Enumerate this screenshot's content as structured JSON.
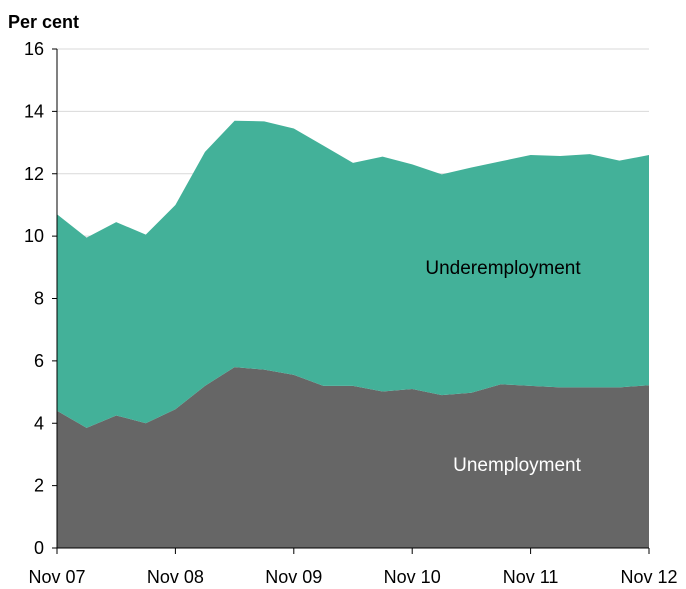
{
  "chart_data": {
    "type": "area",
    "stacked": true,
    "unit_label": "Per cent",
    "x": [
      "Nov 07",
      "Feb 08",
      "May 08",
      "Aug 08",
      "Nov 08",
      "Feb 09",
      "May 09",
      "Aug 09",
      "Nov 09",
      "Feb 10",
      "May 10",
      "Aug 10",
      "Nov 10",
      "Feb 11",
      "May 11",
      "Aug 11",
      "Nov 11",
      "Feb 12",
      "May 12",
      "Aug 12",
      "Nov 12"
    ],
    "x_tick_labels": [
      "Nov 07",
      "Nov 08",
      "Nov 09",
      "Nov 10",
      "Nov 11",
      "Nov 12"
    ],
    "ylim": [
      0,
      16
    ],
    "y_ticks": [
      0,
      2,
      4,
      6,
      8,
      10,
      12,
      14,
      16
    ],
    "grid": true,
    "series": [
      {
        "name": "Unemployment",
        "color": "#666666",
        "label_color": "#ffffff",
        "values": [
          4.4,
          3.85,
          4.25,
          4.0,
          4.45,
          5.2,
          5.8,
          5.72,
          5.55,
          5.2,
          5.2,
          5.02,
          5.1,
          4.9,
          4.98,
          5.25,
          5.2,
          5.15,
          5.15,
          5.15,
          5.22
        ]
      },
      {
        "name": "Underemployment",
        "color": "#43b199",
        "label_color": "#000000",
        "values": [
          6.3,
          6.1,
          6.2,
          6.05,
          6.55,
          7.5,
          7.9,
          7.96,
          7.9,
          7.7,
          7.15,
          7.53,
          7.2,
          7.08,
          7.22,
          7.15,
          7.4,
          7.42,
          7.48,
          7.27,
          7.38
        ]
      }
    ],
    "series_labels": [
      "Underemployment",
      "Unemployment"
    ]
  }
}
